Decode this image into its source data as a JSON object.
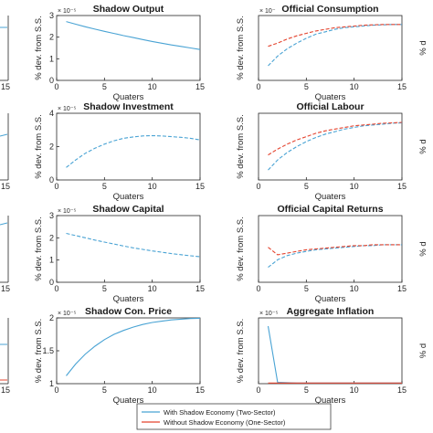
{
  "chart_data": [
    {
      "type": "line",
      "title": "Shadow Output",
      "xlabel": "Quaters",
      "ylabel": "% dev. from S.S.",
      "exponent": "× 10⁻⁵",
      "xlim": [
        0,
        15
      ],
      "ylim": [
        0,
        3
      ],
      "xticks": [
        "0",
        "5",
        "10",
        "15"
      ],
      "yticks": [
        "0",
        "1",
        "2",
        "3"
      ],
      "series": [
        {
          "name": "With Shadow Economy (Two-Sector)",
          "color": "#49a3d4",
          "dash": false,
          "x": [
            1,
            2,
            3,
            4,
            5,
            6,
            7,
            8,
            9,
            10,
            11,
            12,
            13,
            14,
            15
          ],
          "y": [
            2.72,
            2.6,
            2.48,
            2.37,
            2.27,
            2.17,
            2.07,
            1.98,
            1.89,
            1.8,
            1.72,
            1.64,
            1.57,
            1.5,
            1.43
          ]
        }
      ]
    },
    {
      "type": "line",
      "title": "Official Consumption",
      "xlabel": "Quaters",
      "ylabel": "% dev. from S.S.",
      "exponent": "× 10⁻",
      "xlim": [
        0,
        15
      ],
      "ylim": [
        -0.7,
        0.1
      ],
      "xticks": [
        "0",
        "5",
        "10",
        "15"
      ],
      "yticks": [],
      "series": [
        {
          "name": "With Shadow Economy (Two-Sector)",
          "color": "#49a3d4",
          "dash": true,
          "x": [
            1,
            2,
            3,
            4,
            5,
            6,
            7,
            8,
            9,
            10,
            11,
            12,
            13,
            14,
            15
          ],
          "y": [
            -0.52,
            -0.4,
            -0.31,
            -0.24,
            -0.18,
            -0.13,
            -0.1,
            -0.07,
            -0.05,
            -0.04,
            -0.03,
            -0.02,
            -0.015,
            -0.01,
            -0.01
          ]
        },
        {
          "name": "Without Shadow Economy (One-Sector)",
          "color": "#e4442f",
          "dash": true,
          "x": [
            1,
            2,
            3,
            4,
            5,
            6,
            7,
            8,
            9,
            10,
            11,
            12,
            13,
            14,
            15
          ],
          "y": [
            -0.28,
            -0.24,
            -0.19,
            -0.15,
            -0.12,
            -0.09,
            -0.07,
            -0.05,
            -0.04,
            -0.03,
            -0.02,
            -0.015,
            -0.01,
            -0.01,
            -0.01
          ]
        }
      ]
    },
    {
      "type": "line",
      "title": "Shadow Investment",
      "xlabel": "Quaters",
      "ylabel": "% dev. from S.S.",
      "exponent": "× 10⁻⁵",
      "xlim": [
        0,
        15
      ],
      "ylim": [
        0,
        4
      ],
      "xticks": [
        "0",
        "5",
        "10",
        "15"
      ],
      "yticks": [
        "0",
        "2",
        "4"
      ],
      "series": [
        {
          "name": "With Shadow Economy (Two-Sector)",
          "color": "#49a3d4",
          "dash": true,
          "x": [
            1,
            2,
            3,
            4,
            5,
            6,
            7,
            8,
            9,
            10,
            11,
            12,
            13,
            14,
            15
          ],
          "y": [
            0.75,
            1.2,
            1.6,
            1.9,
            2.15,
            2.35,
            2.5,
            2.58,
            2.64,
            2.66,
            2.64,
            2.6,
            2.56,
            2.5,
            2.4
          ]
        }
      ]
    },
    {
      "type": "line",
      "title": "Official Labour",
      "xlabel": "Quaters",
      "ylabel": "% dev. from S.S.",
      "exponent": "",
      "xlim": [
        0,
        15
      ],
      "ylim": [
        -0.7,
        0.1
      ],
      "xticks": [
        "0",
        "5",
        "10",
        "15"
      ],
      "yticks": [],
      "series": [
        {
          "name": "With Shadow Economy (Two-Sector)",
          "color": "#49a3d4",
          "dash": true,
          "x": [
            1,
            2,
            3,
            4,
            5,
            6,
            7,
            8,
            9,
            10,
            11,
            12,
            13,
            14,
            15
          ],
          "y": [
            -0.58,
            -0.46,
            -0.37,
            -0.3,
            -0.24,
            -0.19,
            -0.15,
            -0.12,
            -0.09,
            -0.07,
            -0.05,
            -0.04,
            -0.03,
            -0.02,
            -0.015
          ]
        },
        {
          "name": "Without Shadow Economy (One-Sector)",
          "color": "#e4442f",
          "dash": true,
          "x": [
            1,
            2,
            3,
            4,
            5,
            6,
            7,
            8,
            9,
            10,
            11,
            12,
            13,
            14,
            15
          ],
          "y": [
            -0.4,
            -0.33,
            -0.27,
            -0.22,
            -0.18,
            -0.14,
            -0.11,
            -0.09,
            -0.07,
            -0.05,
            -0.04,
            -0.03,
            -0.02,
            -0.015,
            -0.01
          ]
        }
      ]
    },
    {
      "type": "line",
      "title": "Shadow Capital",
      "xlabel": "Quaters",
      "ylabel": "% dev. from S.S.",
      "exponent": "× 10⁻⁵",
      "xlim": [
        0,
        15
      ],
      "ylim": [
        0,
        3
      ],
      "xticks": [
        "0",
        "5",
        "10",
        "15"
      ],
      "yticks": [
        "0",
        "1",
        "2",
        "3"
      ],
      "series": [
        {
          "name": "With Shadow Economy (Two-Sector)",
          "color": "#49a3d4",
          "dash": true,
          "x": [
            1,
            2,
            3,
            4,
            5,
            6,
            7,
            8,
            9,
            10,
            11,
            12,
            13,
            14,
            15
          ],
          "y": [
            2.2,
            2.1,
            2.0,
            1.9,
            1.81,
            1.72,
            1.63,
            1.55,
            1.48,
            1.41,
            1.35,
            1.29,
            1.24,
            1.19,
            1.15
          ]
        }
      ]
    },
    {
      "type": "line",
      "title": "Official Capital Returns",
      "xlabel": "Quaters",
      "ylabel": "% dev. from S.S.",
      "exponent": "",
      "xlim": [
        0,
        15
      ],
      "ylim": [
        -0.4,
        0.4
      ],
      "xticks": [
        "0",
        "5",
        "10",
        "15"
      ],
      "yticks": [],
      "series": [
        {
          "name": "With Shadow Economy (Two-Sector)",
          "color": "#49a3d4",
          "dash": true,
          "x": [
            1,
            2,
            3,
            4,
            5,
            6,
            7,
            8,
            9,
            10,
            11,
            12,
            13,
            14,
            15
          ],
          "y": [
            -0.22,
            -0.13,
            -0.08,
            -0.05,
            -0.03,
            -0.01,
            0.0,
            0.01,
            0.02,
            0.03,
            0.04,
            0.04,
            0.05,
            0.05,
            0.05
          ]
        },
        {
          "name": "Without Shadow Economy (One-Sector)",
          "color": "#e4442f",
          "dash": true,
          "x": [
            1,
            2,
            3,
            4,
            5,
            6,
            7,
            8,
            9,
            10,
            11,
            12,
            13,
            14,
            15
          ],
          "y": [
            0.02,
            -0.07,
            -0.05,
            -0.03,
            -0.01,
            0.0,
            0.01,
            0.02,
            0.03,
            0.04,
            0.04,
            0.05,
            0.05,
            0.05,
            0.05
          ]
        }
      ]
    },
    {
      "type": "line",
      "title": "Shadow Con. Price",
      "xlabel": "Quaters",
      "ylabel": "% dev. from S.S.",
      "exponent": "× 10⁻⁵",
      "xlim": [
        0,
        15
      ],
      "ylim": [
        1,
        2
      ],
      "xticks": [
        "0",
        "5",
        "10",
        "15"
      ],
      "yticks": [
        "1",
        "1.5",
        "2"
      ],
      "series": [
        {
          "name": "With Shadow Economy (Two-Sector)",
          "color": "#49a3d4",
          "dash": false,
          "x": [
            1,
            2,
            3,
            4,
            5,
            6,
            7,
            8,
            9,
            10,
            11,
            12,
            13,
            14,
            15
          ],
          "y": [
            1.12,
            1.3,
            1.45,
            1.57,
            1.67,
            1.75,
            1.81,
            1.86,
            1.9,
            1.93,
            1.95,
            1.97,
            1.98,
            1.99,
            1.995
          ]
        }
      ]
    },
    {
      "type": "line",
      "title": "Aggregate Inflation",
      "xlabel": "Quaters",
      "ylabel": "% dev. from S.S.",
      "exponent": "× 10⁻⁵",
      "xlim": [
        0,
        15
      ],
      "ylim": [
        0,
        2
      ],
      "xticks": [
        "0",
        "5",
        "10",
        "15"
      ],
      "yticks": [],
      "series": [
        {
          "name": "With Shadow Economy (Two-Sector)",
          "color": "#49a3d4",
          "dash": false,
          "x": [
            1,
            2,
            3,
            4,
            5,
            6,
            7,
            8,
            9,
            10,
            11,
            12,
            13,
            14,
            15
          ],
          "y": [
            1.75,
            0.04,
            0.03,
            0.02,
            0.02,
            0.02,
            0.02,
            0.02,
            0.02,
            0.02,
            0.02,
            0.02,
            0.02,
            0.02,
            0.02
          ]
        },
        {
          "name": "Without Shadow Economy (One-Sector)",
          "color": "#e4442f",
          "dash": false,
          "x": [
            1,
            2,
            3,
            4,
            5,
            6,
            7,
            8,
            9,
            10,
            11,
            12,
            13,
            14,
            15
          ],
          "y": [
            0.02,
            0.02,
            0.02,
            0.02,
            0.02,
            0.02,
            0.02,
            0.02,
            0.02,
            0.02,
            0.02,
            0.02,
            0.02,
            0.02,
            0.02
          ]
        }
      ]
    }
  ],
  "legend": {
    "entries": [
      {
        "label": "With Shadow Economy (Two-Sector)",
        "color": "#49a3d4"
      },
      {
        "label": "Without Shadow Economy (One-Sector)",
        "color": "#e4442f"
      }
    ]
  },
  "edge_fragments": {
    "left_tick": "15",
    "right_label": "% d"
  }
}
